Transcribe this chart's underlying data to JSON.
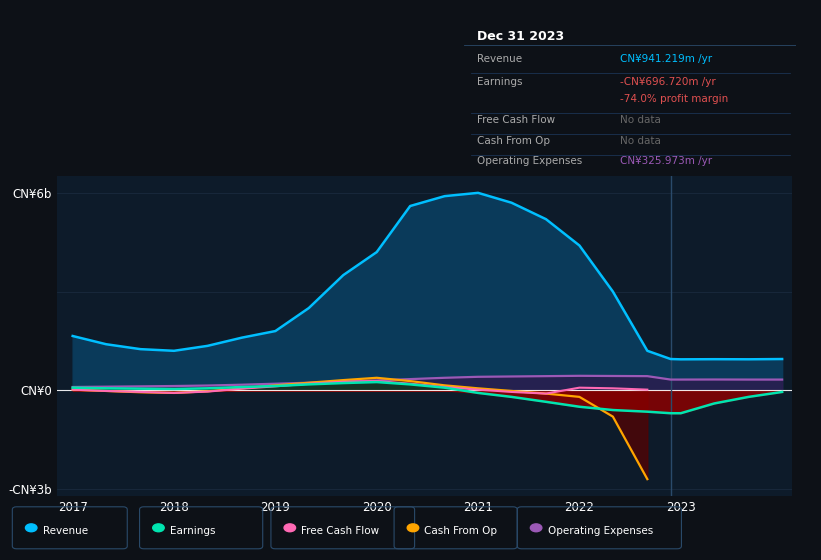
{
  "bg_color": "#0d1117",
  "plot_bg_color": "#0d1b2a",
  "grid_color": "#253a52",
  "years": [
    2017.0,
    2017.33,
    2017.67,
    2018.0,
    2018.33,
    2018.67,
    2019.0,
    2019.33,
    2019.67,
    2020.0,
    2020.33,
    2020.67,
    2021.0,
    2021.33,
    2021.67,
    2022.0,
    2022.33,
    2022.67,
    2022.9,
    2023.0,
    2023.33,
    2023.67,
    2024.0
  ],
  "revenue": [
    1650,
    1400,
    1250,
    1200,
    1350,
    1600,
    1800,
    2500,
    3500,
    4200,
    5600,
    5900,
    6000,
    5700,
    5200,
    4400,
    3000,
    1200,
    950,
    941,
    945,
    942,
    950
  ],
  "earnings": [
    80,
    60,
    50,
    40,
    60,
    100,
    130,
    180,
    220,
    250,
    180,
    80,
    -80,
    -200,
    -350,
    -500,
    -600,
    -650,
    -697,
    -697,
    -400,
    -200,
    -50
  ],
  "free_cash_flow": [
    20,
    -20,
    -50,
    -80,
    -40,
    50,
    120,
    200,
    260,
    280,
    200,
    100,
    20,
    -50,
    -100,
    80,
    60,
    20,
    null,
    null,
    null,
    null,
    null
  ],
  "cash_from_op": [
    20,
    -20,
    -60,
    -80,
    -30,
    60,
    150,
    230,
    310,
    380,
    280,
    150,
    60,
    -20,
    -100,
    -200,
    -800,
    -2700,
    null,
    null,
    null,
    null,
    null
  ],
  "operating_expenses": [
    100,
    110,
    120,
    130,
    145,
    170,
    200,
    230,
    270,
    300,
    340,
    380,
    410,
    420,
    430,
    440,
    435,
    430,
    326,
    326,
    328,
    326,
    326
  ],
  "revenue_color": "#00bfff",
  "revenue_fill": "#0a3a5a",
  "earnings_color": "#00e5b0",
  "earnings_fill_pos": "#0d3a2a",
  "earnings_fill_neg_bright": "#8b0000",
  "earnings_fill_neg_dark": "#3d0030",
  "free_cash_flow_color": "#ff69b4",
  "cash_from_op_color": "#ffa500",
  "operating_expenses_color": "#9b59b6",
  "operating_expenses_fill": "#2d1b4e",
  "ylim": [
    -3200,
    6500
  ],
  "ytick_vals": [
    -3000,
    0,
    6000
  ],
  "ytick_labels": [
    "-CN¥3b",
    "CN¥0",
    "CN¥6b"
  ],
  "xtick_years": [
    2017,
    2018,
    2019,
    2020,
    2021,
    2022,
    2023
  ],
  "vline_x": 2022.9,
  "tooltip_title": "Dec 31 2023",
  "tooltip_rows": [
    {
      "label": "Revenue",
      "value": "CN¥941.219m /yr",
      "value_color": "#00bfff",
      "sep": true
    },
    {
      "label": "Earnings",
      "value": "-CN¥696.720m /yr",
      "value_color": "#e05050",
      "sep": false
    },
    {
      "label": "",
      "value": "-74.0% profit margin",
      "value_color": "#e05050",
      "sep": true
    },
    {
      "label": "Free Cash Flow",
      "value": "No data",
      "value_color": "#666666",
      "sep": true
    },
    {
      "label": "Cash From Op",
      "value": "No data",
      "value_color": "#666666",
      "sep": true
    },
    {
      "label": "Operating Expenses",
      "value": "CN¥325.973m /yr",
      "value_color": "#9b59b6",
      "sep": false
    }
  ],
  "legend_items": [
    {
      "label": "Revenue",
      "color": "#00bfff"
    },
    {
      "label": "Earnings",
      "color": "#00e5b0"
    },
    {
      "label": "Free Cash Flow",
      "color": "#ff69b4"
    },
    {
      "label": "Cash From Op",
      "color": "#ffa500"
    },
    {
      "label": "Operating Expenses",
      "color": "#9b59b6"
    }
  ]
}
